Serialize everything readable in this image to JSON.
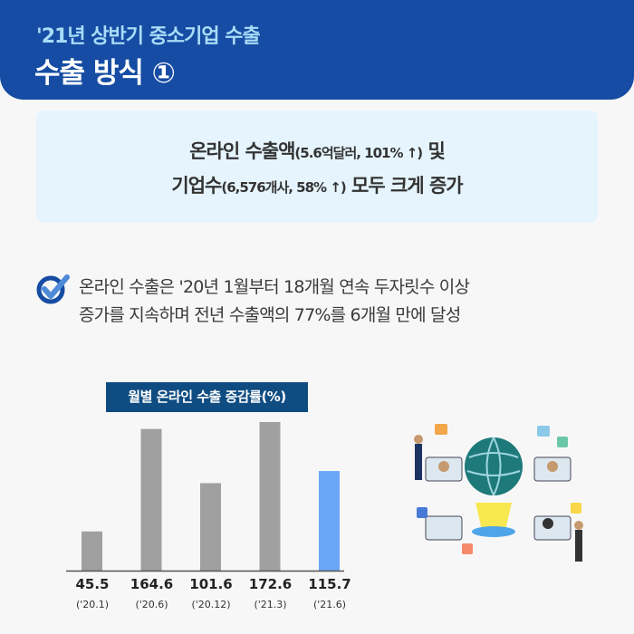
{
  "header": {
    "subtitle": "'21년 상반기 중소기업 수출",
    "title": "수출 방식 ①"
  },
  "highlight": {
    "line1_a": "온라인 수출액",
    "line1_b": "(5.6억달러, 101% ↑)",
    "line1_c": " 및",
    "line2_a": "기업수",
    "line2_b": "(6,576개사, 58% ↑)",
    "line2_c": " 모두 크게 증가"
  },
  "point": {
    "line1": "온라인 수출은 '20년 1월부터 18개월 연속 두자릿수 이상",
    "line2": "증가를 지속하며 전년 수출액의 77%를 6개월 만에 달성"
  },
  "chart_data": {
    "type": "bar",
    "title": "월별 온라인 수출 증감률(%)",
    "categories": [
      "('20.1)",
      "('20.6)",
      "('20.12)",
      "('21.3)",
      "('21.6)"
    ],
    "values": [
      45.5,
      164.6,
      101.6,
      172.6,
      115.7
    ],
    "value_labels": [
      "45.5",
      "164.6",
      "101.6",
      "172.6",
      "115.7"
    ],
    "colors": [
      "#a0a0a0",
      "#a0a0a0",
      "#a0a0a0",
      "#a0a0a0",
      "#6aa7f6"
    ],
    "ylim": [
      0,
      180
    ]
  },
  "colors": {
    "header": "#164ca3",
    "accent": "#a9dcf8",
    "box": "#e6f5fd"
  }
}
